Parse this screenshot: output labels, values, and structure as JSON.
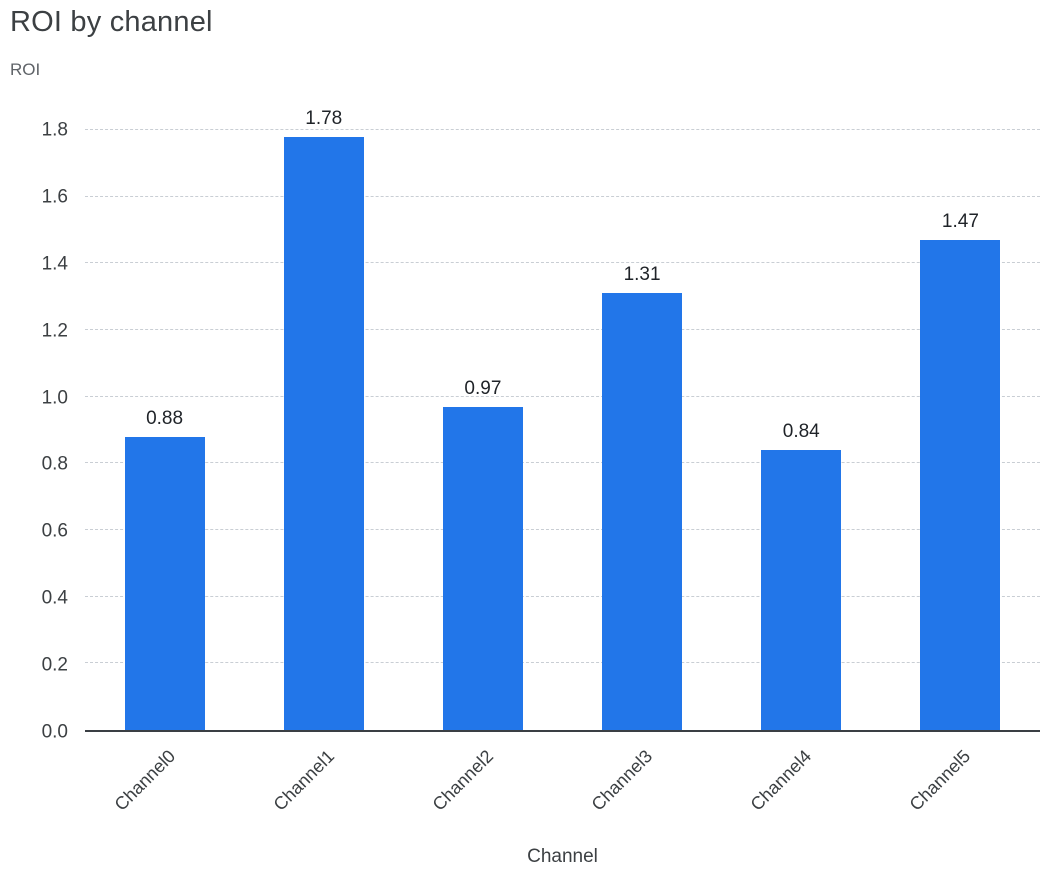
{
  "chart_data": {
    "type": "bar",
    "title": "ROI by channel",
    "xlabel": "Channel",
    "ylabel": "ROI",
    "categories": [
      "Channel0",
      "Channel1",
      "Channel2",
      "Channel3",
      "Channel4",
      "Channel5"
    ],
    "values": [
      0.88,
      1.78,
      0.97,
      1.31,
      0.84,
      1.47
    ],
    "value_labels": [
      "0.88",
      "1.78",
      "0.97",
      "1.31",
      "0.84",
      "1.47"
    ],
    "ylim": [
      0,
      1.8
    ],
    "yticks": [
      0,
      0.2,
      0.4,
      0.6,
      0.8,
      1.0,
      1.2,
      1.4,
      1.6,
      1.8
    ],
    "ytick_labels": [
      "0.0",
      "0.2",
      "0.4",
      "0.6",
      "0.8",
      "1.0",
      "1.2",
      "1.4",
      "1.6",
      "1.8"
    ],
    "grid": "horizontal-dashed",
    "legend": "none",
    "colors": {
      "bar": "#2276e9",
      "grid": "#c9ced4",
      "axis": "#3a3f44",
      "title": "#3c4043",
      "tick_label": "#3c4043",
      "value_label": "#1f2328",
      "y_axis_name": "#5f6368"
    }
  }
}
